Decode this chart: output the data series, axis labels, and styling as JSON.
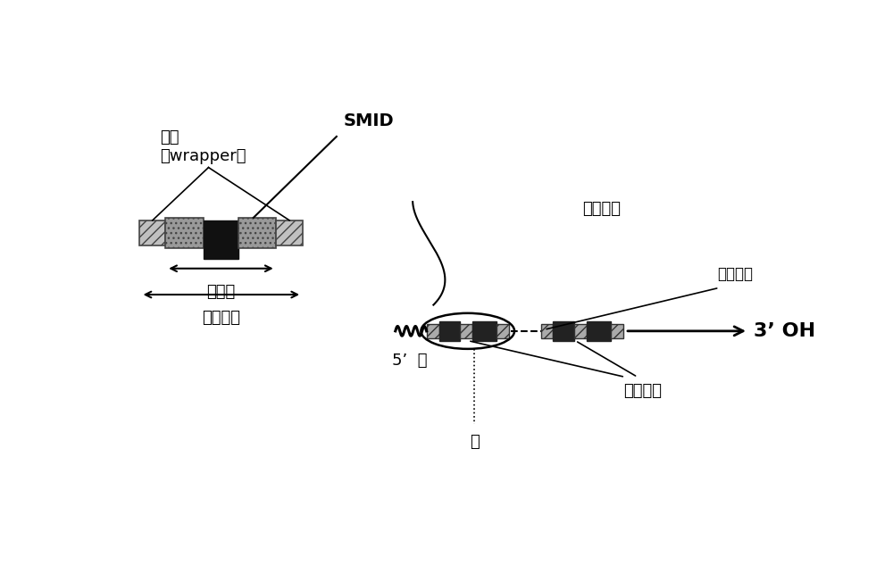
{
  "bg_color": "#ffffff",
  "label_fengTao": "封套\n（wrapper）",
  "label_SMID": "SMID",
  "label_biaoJiWu": "标记物",
  "label_biaoJiWuKuai_top": "标记物块",
  "label_5tail": "5’  尾",
  "label_3OH": "3’ OH",
  "label_biaoQianTuLi": "标签图例",
  "label_lianJieYuanJian": "连接元件",
  "label_biaoJiWuKuai_bot": "标记物块",
  "label_huan": "环"
}
